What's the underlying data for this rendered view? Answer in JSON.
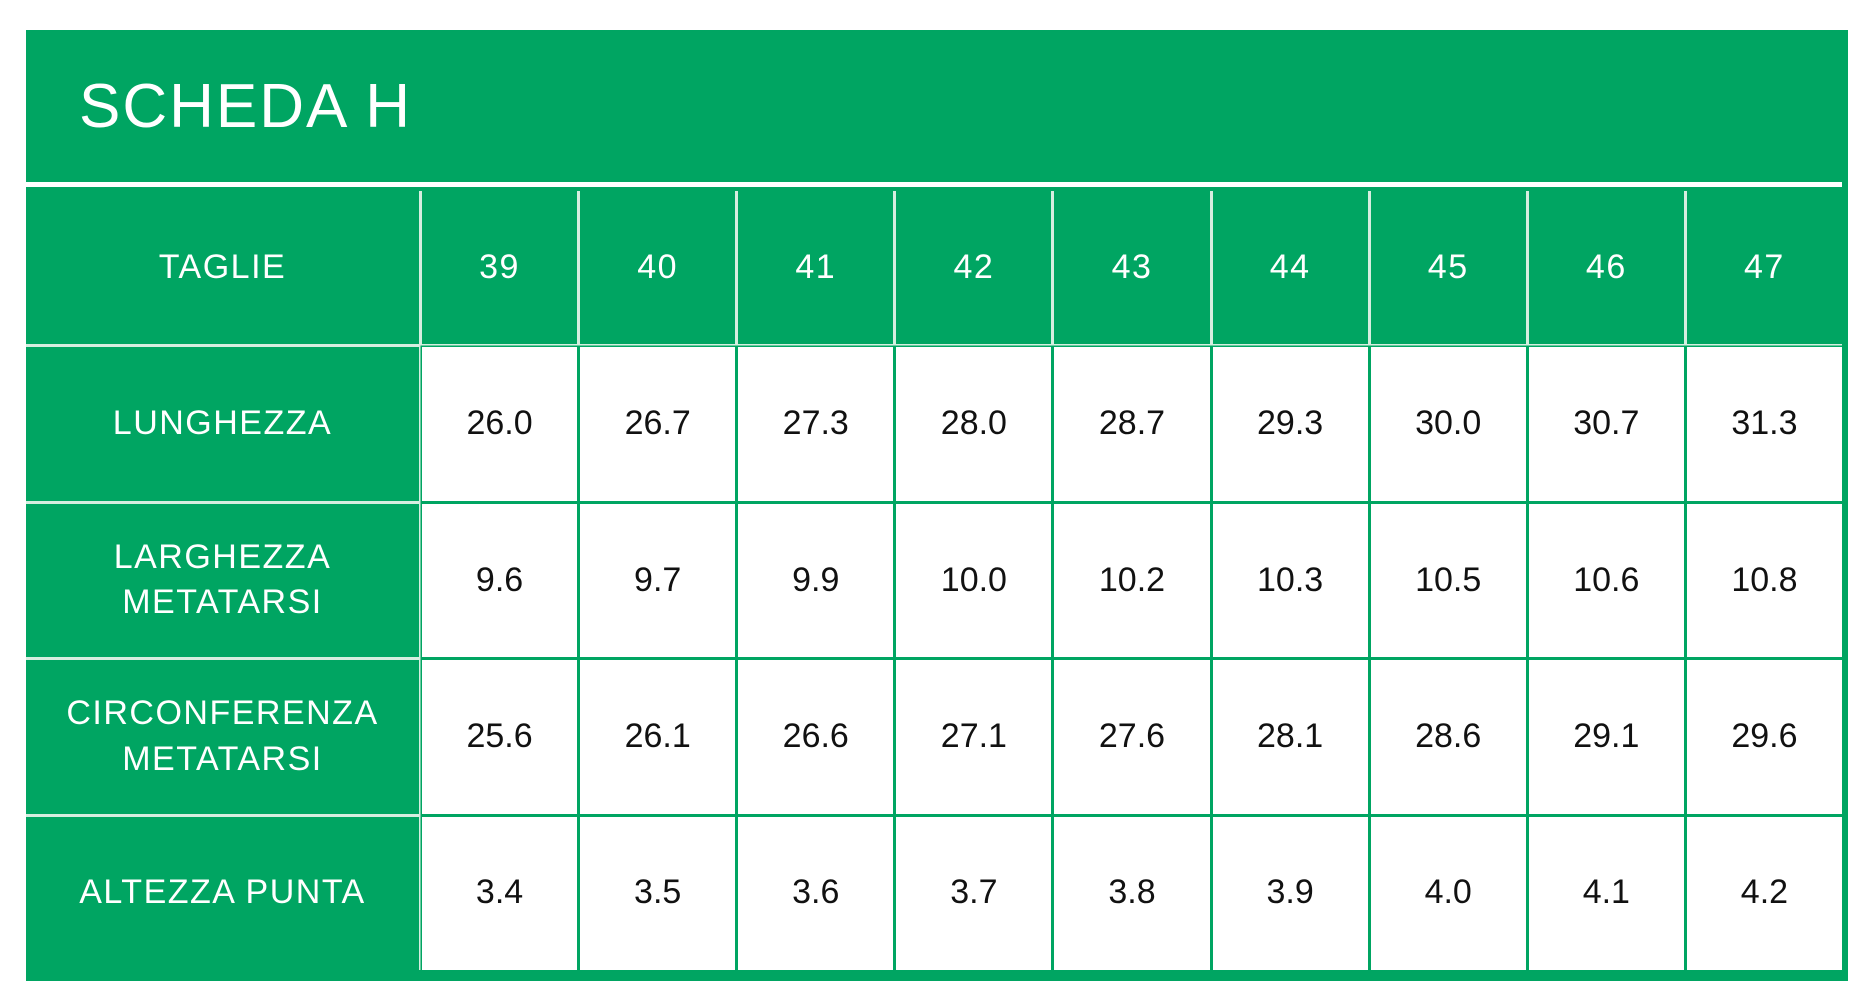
{
  "header": {
    "title": "SCHEDA H"
  },
  "table": {
    "columns": [
      "TAGLIE",
      "39",
      "40",
      "41",
      "42",
      "43",
      "44",
      "45",
      "46",
      "47"
    ],
    "rows": [
      [
        "LUNGHEZZA",
        "26.0",
        "26.7",
        "27.3",
        "28.0",
        "28.7",
        "29.3",
        "30.0",
        "30.7",
        "31.3"
      ],
      [
        "LARGHEZZA\nMETATARSI",
        "9.6",
        "9.7",
        "9.9",
        "10.0",
        "10.2",
        "10.3",
        "10.5",
        "10.6",
        "10.8"
      ],
      [
        "CIRCONFERENZA\nMETATARSI",
        "25.6",
        "26.1",
        "26.6",
        "27.1",
        "27.6",
        "28.1",
        "28.6",
        "29.1",
        "29.6"
      ],
      [
        "ALTEZZA PUNTA",
        "3.4",
        "3.5",
        "3.6",
        "3.7",
        "3.8",
        "3.9",
        "4.0",
        "4.1",
        "4.2"
      ]
    ]
  }
}
